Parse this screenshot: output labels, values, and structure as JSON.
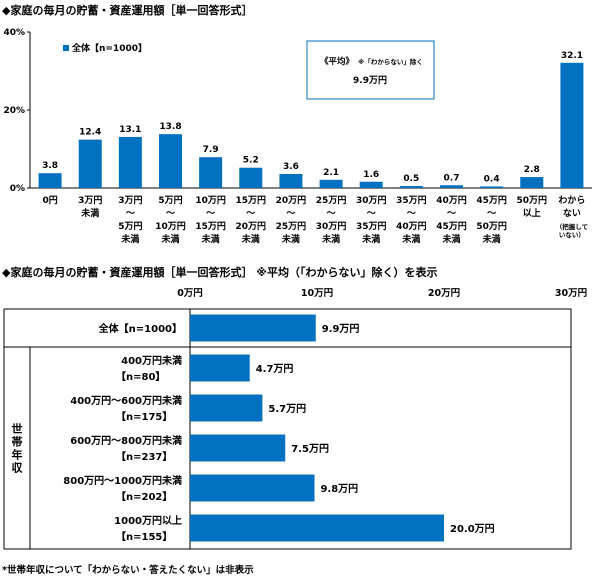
{
  "chart1": {
    "title": "◆家庭の毎月の貯蓄・資産運用額［単一回答形式］",
    "chart_data": {
      "type": "bar",
      "categories": [
        "0円",
        "3万円未満",
        "3万円〜5万円未満",
        "5万円〜10万円未満",
        "10万円〜15万円未満",
        "15万円〜20万円未満",
        "20万円〜25万円未満",
        "25万円〜30万円未満",
        "30万円〜35万円未満",
        "35万円〜40万円未満",
        "40万円〜45万円未満",
        "45万円〜50万円未満",
        "50万円以上",
        "わからない（把握していない）"
      ],
      "category_lines": [
        [
          "0円"
        ],
        [
          "3万円",
          "未満"
        ],
        [
          "3万円",
          "〜",
          "5万円",
          "未満"
        ],
        [
          "5万円",
          "〜",
          "10万円",
          "未満"
        ],
        [
          "10万円",
          "〜",
          "15万円",
          "未満"
        ],
        [
          "15万円",
          "〜",
          "20万円",
          "未満"
        ],
        [
          "20万円",
          "〜",
          "25万円",
          "未満"
        ],
        [
          "25万円",
          "〜",
          "30万円",
          "未満"
        ],
        [
          "30万円",
          "〜",
          "35万円",
          "未満"
        ],
        [
          "35万円",
          "〜",
          "40万円",
          "未満"
        ],
        [
          "40万円",
          "〜",
          "45万円",
          "未満"
        ],
        [
          "45万円",
          "〜",
          "50万円",
          "未満"
        ],
        [
          "50万円",
          "以上"
        ],
        [
          "わから",
          "ない",
          "（把握して",
          "いない）"
        ]
      ],
      "series": [
        {
          "name": "全体【n=1000】",
          "values": [
            3.8,
            12.4,
            13.1,
            13.8,
            7.9,
            5.2,
            3.6,
            2.1,
            1.6,
            0.5,
            0.7,
            0.4,
            2.8,
            32.1
          ]
        }
      ],
      "value_labels": [
        "3.8",
        "12.4",
        "13.1",
        "13.8",
        "7.9",
        "5.2",
        "3.6",
        "2.1",
        "1.6",
        "0.5",
        "0.7",
        "0.4",
        "2.8",
        "32.1"
      ],
      "ylim": [
        0,
        40
      ],
      "yticks": [
        0,
        20,
        40
      ],
      "ytick_labels": [
        "0%",
        "20%",
        "40%"
      ],
      "legend": "top-left",
      "annotation": {
        "line1": "《平均》",
        "note": "※「わからない」除く",
        "line2": "9.9万円"
      }
    }
  },
  "chart2": {
    "title": "◆家庭の毎月の貯蓄・資産運用額［単一回答形式］ ※平均（「わからない」除く）を表示",
    "chart_data": {
      "type": "bar",
      "orientation": "horizontal",
      "xlim": [
        0,
        30
      ],
      "xticks": [
        0,
        10,
        20,
        30
      ],
      "xtick_labels": [
        "0万円",
        "10万円",
        "20万円",
        "30万円"
      ],
      "group_label": "世帯年収",
      "rows": [
        {
          "lines": [
            "全体【n=1000】"
          ],
          "value": 9.9,
          "label": "9.9万円"
        },
        {
          "lines": [
            "400万円未満",
            "【n=80】"
          ],
          "value": 4.7,
          "label": "4.7万円"
        },
        {
          "lines": [
            "400万円〜600万円未満",
            "【n=175】"
          ],
          "value": 5.7,
          "label": "5.7万円"
        },
        {
          "lines": [
            "600万円〜800万円未満",
            "【n=237】"
          ],
          "value": 7.5,
          "label": "7.5万円"
        },
        {
          "lines": [
            "800万円〜1000万円未満",
            "【n=202】"
          ],
          "value": 9.8,
          "label": "9.8万円"
        },
        {
          "lines": [
            "1000万円以上",
            "【n=155】"
          ],
          "value": 20.0,
          "label": "20.0万円"
        }
      ]
    }
  },
  "footnote": "*世帯年収について「わからない・答えたくない」は非表示",
  "colors": {
    "bar": "#0070c0",
    "text": "#000000",
    "grid": "#000000"
  }
}
